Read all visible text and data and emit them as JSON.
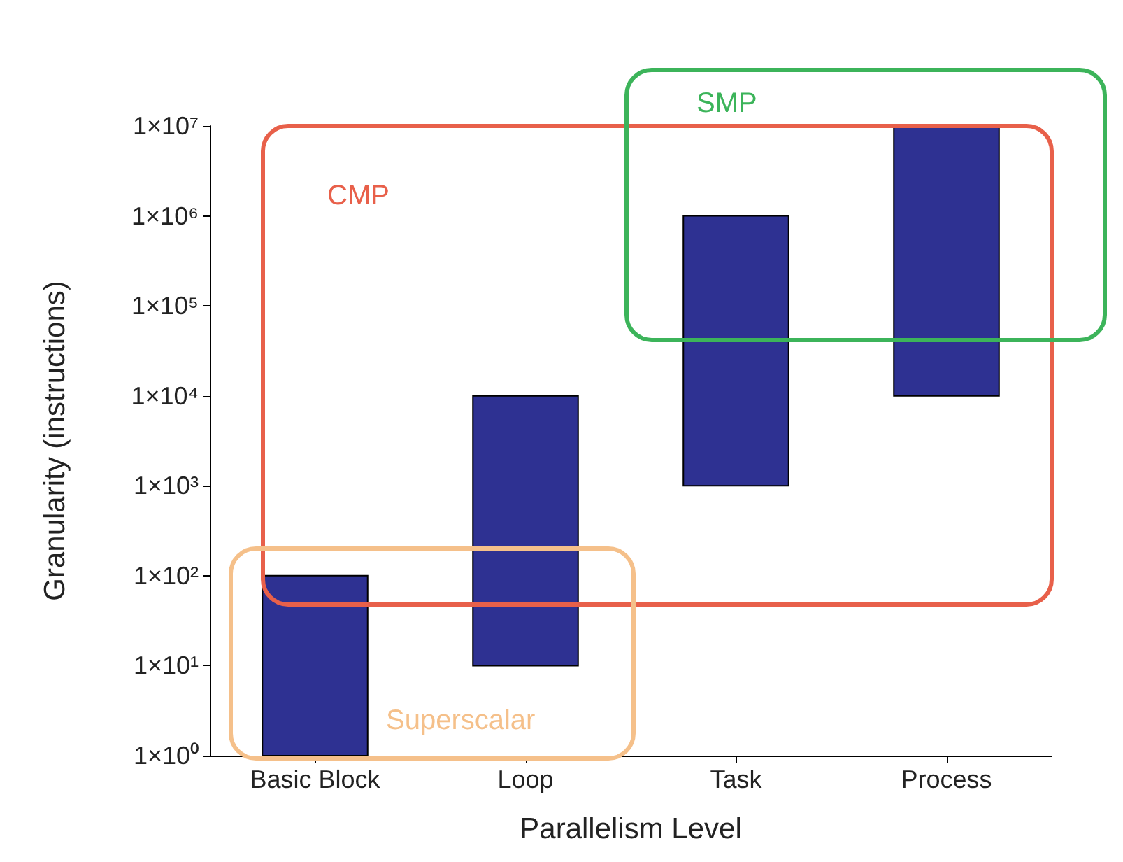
{
  "chart_data": {
    "type": "bar",
    "xlabel": "Parallelism Level",
    "ylabel": "Granularity (instructions)",
    "categories": [
      "Basic Block",
      "Loop",
      "Task",
      "Process"
    ],
    "base": [
      1,
      10,
      1000,
      10000
    ],
    "values": [
      99,
      9990,
      999000,
      9990000
    ],
    "color": "#2e3192",
    "log": "y",
    "ylim": [
      1,
      10000000
    ],
    "yticks": [
      {
        "value": 1,
        "label": "1×10⁰"
      },
      {
        "value": 10,
        "label": "1×10¹"
      },
      {
        "value": 100,
        "label": "1×10²"
      },
      {
        "value": 1000,
        "label": "1×10³"
      },
      {
        "value": 10000,
        "label": "1×10⁴"
      },
      {
        "value": 100000,
        "label": "1×10⁵"
      },
      {
        "value": 1000000,
        "label": "1×10⁶"
      },
      {
        "value": 10000000,
        "label": "1×10⁷"
      }
    ],
    "annotations": [
      "CMP",
      "SMP",
      "Superscalar"
    ]
  }
}
